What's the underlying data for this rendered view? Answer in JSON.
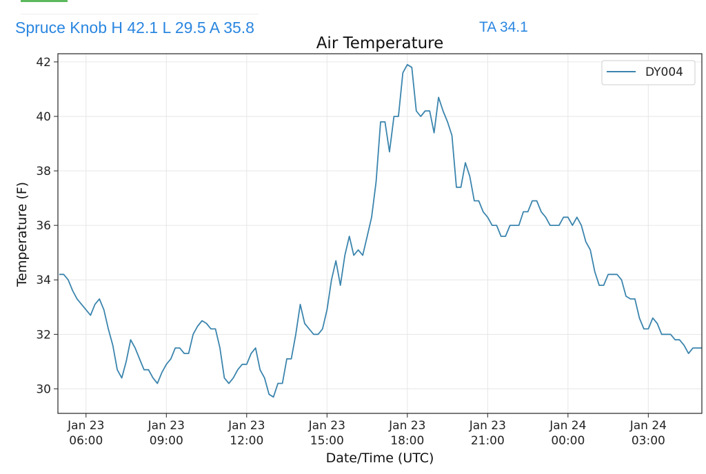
{
  "header": {
    "station_summary": "Spruce Knob H 42.1 L 29.5 A 35.8",
    "ta_readout": "TA 34.1"
  },
  "colors": {
    "header_text": "#2a86e0",
    "series_line": "#3a84ad",
    "grid": "#e6e6e6",
    "indicator": "#5cb85c"
  },
  "chart_data": {
    "type": "line",
    "title": "Air Temperature",
    "xlabel": "Date/Time (UTC)",
    "ylabel": "Temperature (F)",
    "ylim": [
      29.1,
      42.3
    ],
    "xlim": [
      "2023-01-23T04:57",
      "2023-01-24T05:00"
    ],
    "yticks": [
      30,
      32,
      34,
      36,
      38,
      40,
      42
    ],
    "xticks": [
      {
        "t": "2023-01-23T06:00",
        "line1": "Jan 23",
        "line2": "06:00"
      },
      {
        "t": "2023-01-23T09:00",
        "line1": "Jan 23",
        "line2": "09:00"
      },
      {
        "t": "2023-01-23T12:00",
        "line1": "Jan 23",
        "line2": "12:00"
      },
      {
        "t": "2023-01-23T15:00",
        "line1": "Jan 23",
        "line2": "15:00"
      },
      {
        "t": "2023-01-23T18:00",
        "line1": "Jan 23",
        "line2": "18:00"
      },
      {
        "t": "2023-01-23T21:00",
        "line1": "Jan 23",
        "line2": "21:00"
      },
      {
        "t": "2023-01-24T00:00",
        "line1": "Jan 24",
        "line2": "00:00"
      },
      {
        "t": "2023-01-24T03:00",
        "line1": "Jan 24",
        "line2": "03:00"
      }
    ],
    "grid": true,
    "legend_position": "top-right",
    "series": [
      {
        "name": "DY004",
        "color": "#3a84ad",
        "x": [
          "2023-01-23T05:00",
          "2023-01-23T05:10",
          "2023-01-23T05:20",
          "2023-01-23T05:30",
          "2023-01-23T05:40",
          "2023-01-23T05:50",
          "2023-01-23T06:00",
          "2023-01-23T06:10",
          "2023-01-23T06:20",
          "2023-01-23T06:30",
          "2023-01-23T06:40",
          "2023-01-23T06:50",
          "2023-01-23T07:00",
          "2023-01-23T07:10",
          "2023-01-23T07:20",
          "2023-01-23T07:30",
          "2023-01-23T07:40",
          "2023-01-23T07:50",
          "2023-01-23T08:00",
          "2023-01-23T08:10",
          "2023-01-23T08:20",
          "2023-01-23T08:30",
          "2023-01-23T08:40",
          "2023-01-23T08:50",
          "2023-01-23T09:00",
          "2023-01-23T09:10",
          "2023-01-23T09:20",
          "2023-01-23T09:30",
          "2023-01-23T09:40",
          "2023-01-23T09:50",
          "2023-01-23T10:00",
          "2023-01-23T10:10",
          "2023-01-23T10:20",
          "2023-01-23T10:30",
          "2023-01-23T10:40",
          "2023-01-23T10:50",
          "2023-01-23T11:00",
          "2023-01-23T11:10",
          "2023-01-23T11:20",
          "2023-01-23T11:30",
          "2023-01-23T11:40",
          "2023-01-23T11:50",
          "2023-01-23T12:00",
          "2023-01-23T12:10",
          "2023-01-23T12:20",
          "2023-01-23T12:30",
          "2023-01-23T12:40",
          "2023-01-23T12:50",
          "2023-01-23T13:00",
          "2023-01-23T13:10",
          "2023-01-23T13:20",
          "2023-01-23T13:30",
          "2023-01-23T13:40",
          "2023-01-23T13:50",
          "2023-01-23T14:00",
          "2023-01-23T14:10",
          "2023-01-23T14:20",
          "2023-01-23T14:30",
          "2023-01-23T14:40",
          "2023-01-23T14:50",
          "2023-01-23T15:00",
          "2023-01-23T15:10",
          "2023-01-23T15:20",
          "2023-01-23T15:30",
          "2023-01-23T15:40",
          "2023-01-23T15:50",
          "2023-01-23T16:00",
          "2023-01-23T16:10",
          "2023-01-23T16:20",
          "2023-01-23T16:30",
          "2023-01-23T16:40",
          "2023-01-23T16:50",
          "2023-01-23T17:00",
          "2023-01-23T17:10",
          "2023-01-23T17:20",
          "2023-01-23T17:30",
          "2023-01-23T17:40",
          "2023-01-23T17:50",
          "2023-01-23T18:00",
          "2023-01-23T18:10",
          "2023-01-23T18:20",
          "2023-01-23T18:30",
          "2023-01-23T18:40",
          "2023-01-23T18:50",
          "2023-01-23T19:00",
          "2023-01-23T19:10",
          "2023-01-23T19:20",
          "2023-01-23T19:30",
          "2023-01-23T19:40",
          "2023-01-23T19:50",
          "2023-01-23T20:00",
          "2023-01-23T20:10",
          "2023-01-23T20:20",
          "2023-01-23T20:30",
          "2023-01-23T20:40",
          "2023-01-23T20:50",
          "2023-01-23T21:00",
          "2023-01-23T21:10",
          "2023-01-23T21:20",
          "2023-01-23T21:30",
          "2023-01-23T21:40",
          "2023-01-23T21:50",
          "2023-01-23T22:00",
          "2023-01-23T22:10",
          "2023-01-23T22:20",
          "2023-01-23T22:30",
          "2023-01-23T22:40",
          "2023-01-23T22:50",
          "2023-01-23T23:00",
          "2023-01-23T23:10",
          "2023-01-23T23:20",
          "2023-01-23T23:30",
          "2023-01-23T23:40",
          "2023-01-23T23:50",
          "2023-01-24T00:00",
          "2023-01-24T00:10",
          "2023-01-24T00:20",
          "2023-01-24T00:30",
          "2023-01-24T00:40",
          "2023-01-24T00:50",
          "2023-01-24T01:00",
          "2023-01-24T01:10",
          "2023-01-24T01:20",
          "2023-01-24T01:30",
          "2023-01-24T01:40",
          "2023-01-24T01:50",
          "2023-01-24T02:00",
          "2023-01-24T02:10",
          "2023-01-24T02:20",
          "2023-01-24T02:30",
          "2023-01-24T02:40",
          "2023-01-24T02:50",
          "2023-01-24T03:00",
          "2023-01-24T03:10",
          "2023-01-24T03:20",
          "2023-01-24T03:30",
          "2023-01-24T03:40",
          "2023-01-24T03:50",
          "2023-01-24T04:00",
          "2023-01-24T04:10",
          "2023-01-24T04:20",
          "2023-01-24T04:30",
          "2023-01-24T04:40",
          "2023-01-24T04:50",
          "2023-01-24T05:00"
        ],
        "y": [
          34.2,
          34.2,
          34.0,
          33.6,
          33.3,
          33.1,
          32.9,
          32.7,
          33.1,
          33.3,
          32.9,
          32.2,
          31.6,
          30.7,
          30.4,
          31.0,
          31.8,
          31.5,
          31.1,
          30.7,
          30.7,
          30.4,
          30.2,
          30.6,
          30.9,
          31.1,
          31.5,
          31.5,
          31.3,
          31.3,
          32.0,
          32.3,
          32.5,
          32.4,
          32.2,
          32.2,
          31.5,
          30.4,
          30.2,
          30.4,
          30.7,
          30.9,
          30.9,
          31.3,
          31.5,
          30.7,
          30.4,
          29.8,
          29.7,
          30.2,
          30.2,
          31.1,
          31.1,
          32.0,
          33.1,
          32.4,
          32.2,
          32.0,
          32.0,
          32.2,
          32.9,
          34.0,
          34.7,
          33.8,
          34.9,
          35.6,
          34.9,
          35.1,
          34.9,
          35.6,
          36.3,
          37.6,
          39.8,
          39.8,
          38.7,
          40.0,
          40.0,
          41.6,
          41.9,
          41.8,
          40.2,
          40.0,
          40.2,
          40.2,
          39.4,
          40.7,
          40.2,
          39.8,
          39.3,
          37.4,
          37.4,
          38.3,
          37.8,
          36.9,
          36.9,
          36.5,
          36.3,
          36.0,
          36.0,
          35.6,
          35.6,
          36.0,
          36.0,
          36.0,
          36.5,
          36.5,
          36.9,
          36.9,
          36.5,
          36.3,
          36.0,
          36.0,
          36.0,
          36.3,
          36.3,
          36.0,
          36.3,
          36.0,
          35.4,
          35.1,
          34.3,
          33.8,
          33.8,
          34.2,
          34.2,
          34.2,
          34.0,
          33.4,
          33.3,
          33.3,
          32.6,
          32.2,
          32.2,
          32.6,
          32.4,
          32.0,
          32.0,
          32.0,
          31.8,
          31.8,
          31.6,
          31.3,
          31.5,
          31.5,
          31.5
        ]
      }
    ]
  }
}
